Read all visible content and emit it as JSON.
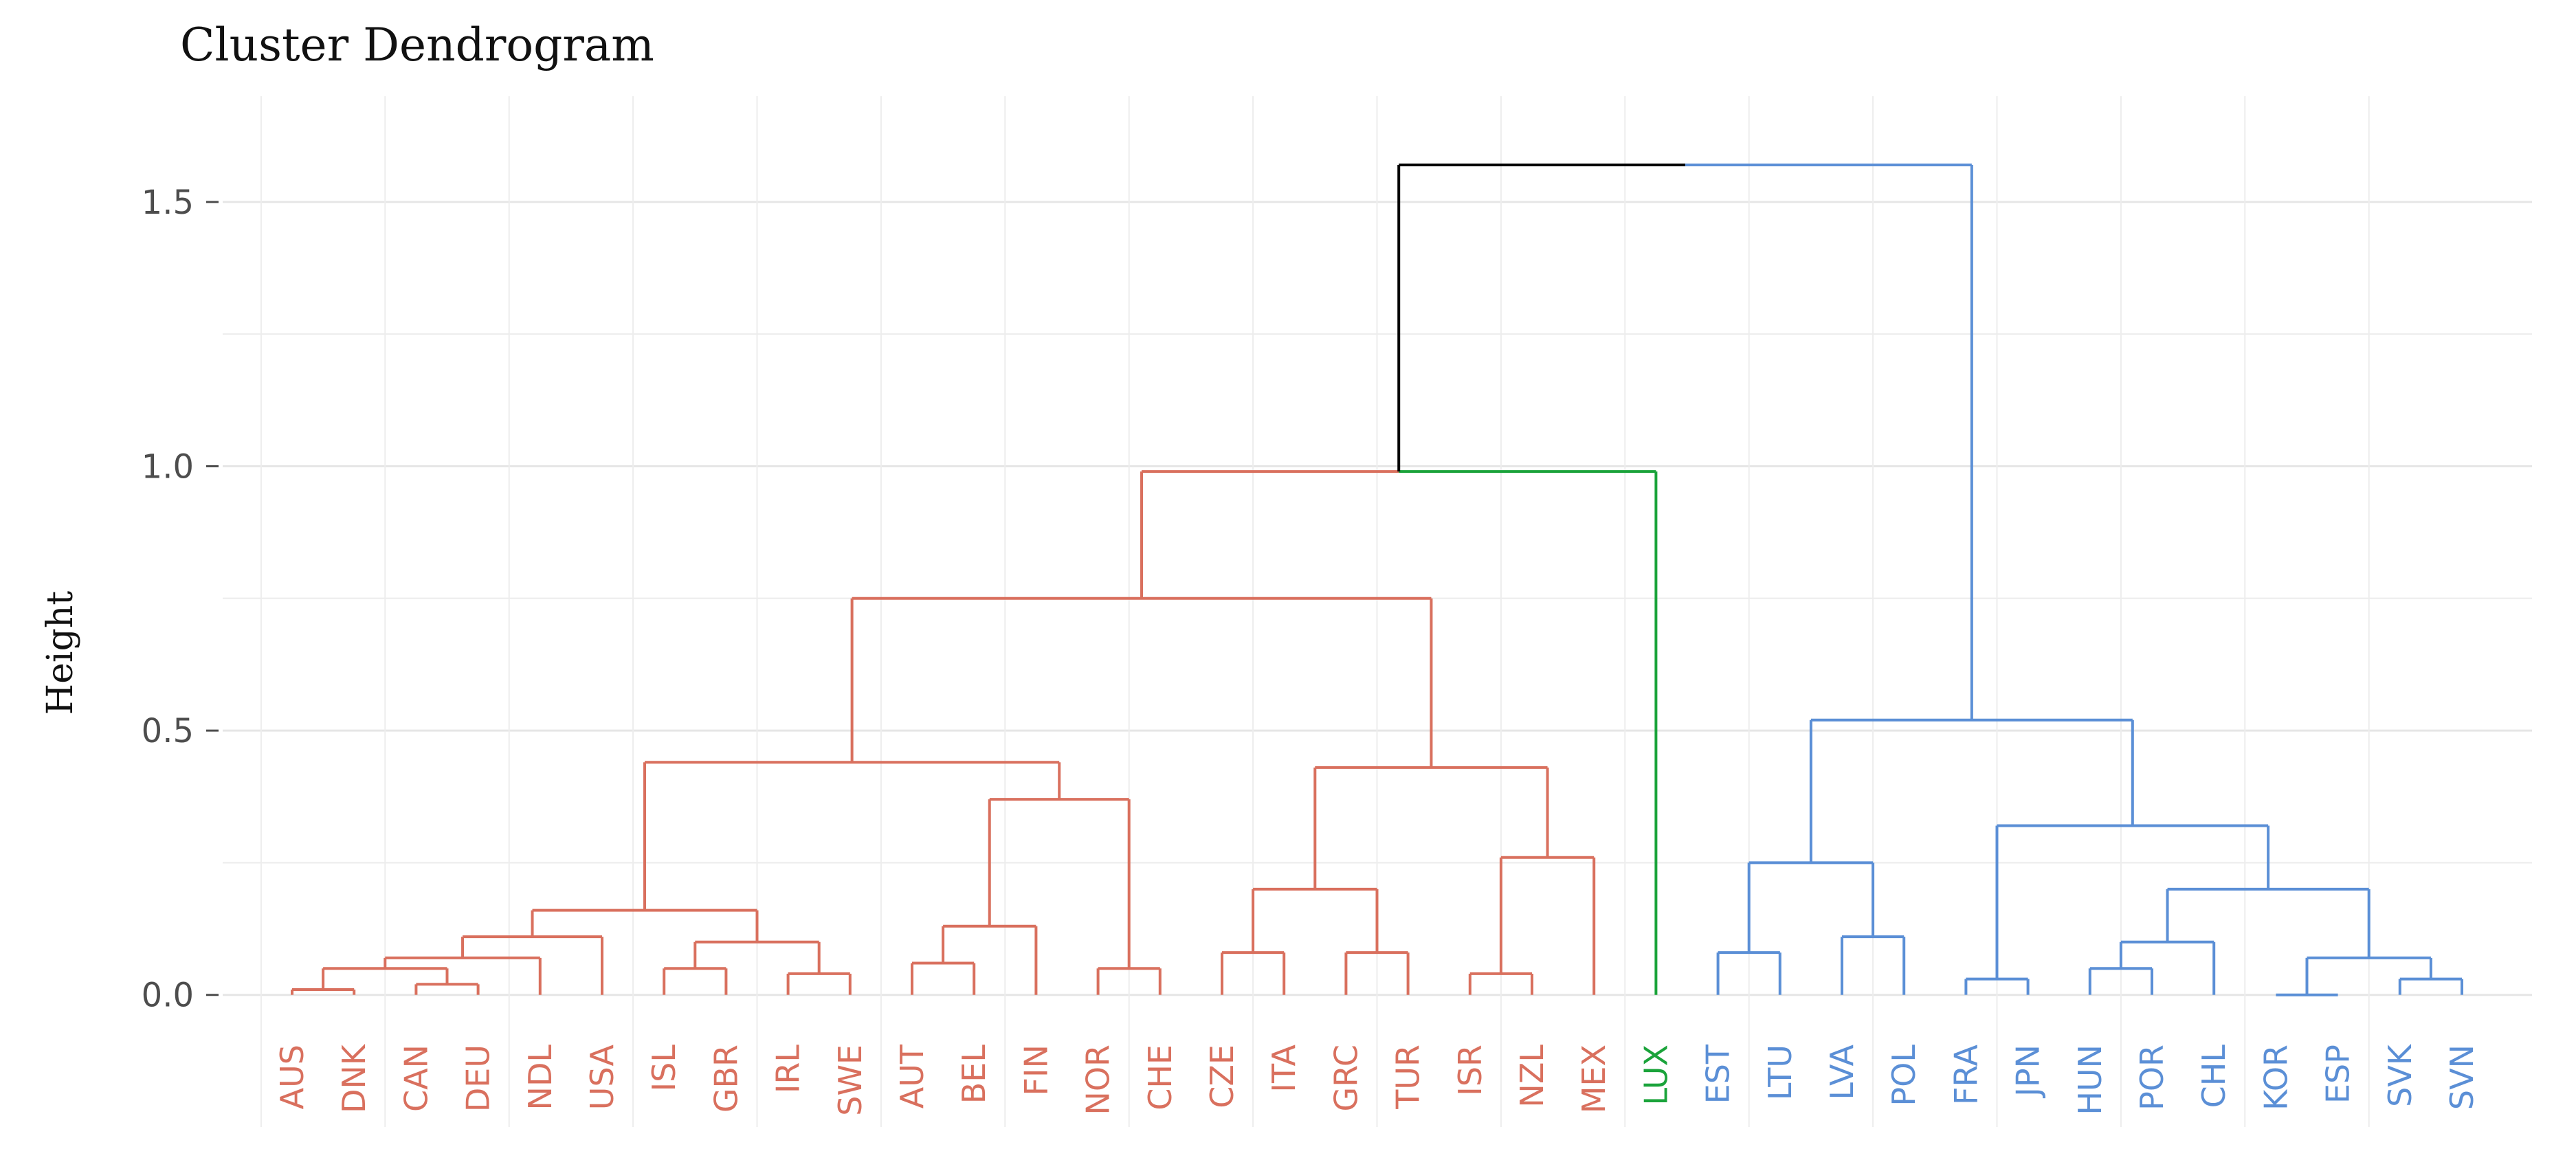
{
  "chart_data": {
    "type": "dendrogram",
    "title": "Cluster Dendrogram",
    "xlabel": "",
    "ylabel": "Height",
    "ylim": [
      -0.25,
      1.7
    ],
    "yticks": [
      0.0,
      0.5,
      1.0,
      1.5
    ],
    "ytick_labels": [
      "0.0",
      "0.5",
      "1.0",
      "1.5"
    ],
    "grid": true,
    "leaves": [
      "AUS",
      "DNK",
      "CAN",
      "DEU",
      "NDL",
      "USA",
      "ISL",
      "GBR",
      "IRL",
      "SWE",
      "AUT",
      "BEL",
      "FIN",
      "NOR",
      "CHE",
      "CZE",
      "ITA",
      "GRC",
      "TUR",
      "ISR",
      "NZL",
      "MEX",
      "LUX",
      "EST",
      "LTU",
      "LVA",
      "POL",
      "FRA",
      "JPN",
      "HUN",
      "POR",
      "CHL",
      "KOR",
      "ESP",
      "SVK",
      "SVN"
    ],
    "leaf_clusters": [
      1,
      1,
      1,
      1,
      1,
      1,
      1,
      1,
      1,
      1,
      1,
      1,
      1,
      1,
      1,
      1,
      1,
      1,
      1,
      1,
      1,
      1,
      2,
      3,
      3,
      3,
      3,
      3,
      3,
      3,
      3,
      3,
      3,
      3,
      3,
      3
    ],
    "cluster_colors": {
      "0": "#000000",
      "1": "#d9705e",
      "2": "#1aa33a",
      "3": "#5b8fd6"
    },
    "merges": [
      {
        "left": "AUS",
        "right": "DNK",
        "height": 0.01
      },
      {
        "left": "CAN",
        "right": "DEU",
        "height": 0.02
      },
      {
        "left": "AUS|DNK",
        "right": "CAN|DEU",
        "height": 0.05
      },
      {
        "left": "AUS|DNK|CAN|DEU",
        "right": "NDL",
        "height": 0.07
      },
      {
        "left": "AUS|DNK|CAN|DEU|NDL",
        "right": "USA",
        "height": 0.11
      },
      {
        "left": "ISL",
        "right": "GBR",
        "height": 0.05
      },
      {
        "left": "IRL",
        "right": "SWE",
        "height": 0.04
      },
      {
        "left": "ISL|GBR",
        "right": "IRL|SWE",
        "height": 0.1
      },
      {
        "left": "AUS..USA",
        "right": "ISL..SWE",
        "height": 0.16
      },
      {
        "left": "AUT",
        "right": "BEL",
        "height": 0.06
      },
      {
        "left": "AUT|BEL",
        "right": "FIN",
        "height": 0.13
      },
      {
        "left": "NOR",
        "right": "CHE",
        "height": 0.05
      },
      {
        "left": "AUT|BEL|FIN",
        "right": "NOR|CHE",
        "height": 0.37
      },
      {
        "left": "AUS..SWE",
        "right": "AUT..CHE",
        "height": 0.44
      },
      {
        "left": "CZE",
        "right": "ITA",
        "height": 0.08
      },
      {
        "left": "GRC",
        "right": "TUR",
        "height": 0.08
      },
      {
        "left": "CZE|ITA",
        "right": "GRC|TUR",
        "height": 0.2
      },
      {
        "left": "ISR",
        "right": "NZL",
        "height": 0.04
      },
      {
        "left": "ISR|NZL",
        "right": "MEX",
        "height": 0.26
      },
      {
        "left": "CZE..TUR",
        "right": "ISR..MEX",
        "height": 0.43
      },
      {
        "left": "AUS..CHE",
        "right": "CZE..MEX",
        "height": 0.75
      },
      {
        "left": "AUS..MEX",
        "right": "LUX",
        "height": 0.99
      },
      {
        "left": "EST",
        "right": "LTU",
        "height": 0.08
      },
      {
        "left": "LVA",
        "right": "POL",
        "height": 0.11
      },
      {
        "left": "EST|LTU",
        "right": "LVA|POL",
        "height": 0.25
      },
      {
        "left": "FRA",
        "right": "JPN",
        "height": 0.03
      },
      {
        "left": "HUN",
        "right": "POR",
        "height": 0.05
      },
      {
        "left": "HUN|POR",
        "right": "CHL",
        "height": 0.1
      },
      {
        "left": "KOR",
        "right": "ESP",
        "height": 0.0
      },
      {
        "left": "SVK",
        "right": "SVN",
        "height": 0.03
      },
      {
        "left": "KOR|ESP",
        "right": "SVK|SVN",
        "height": 0.07
      },
      {
        "left": "HUN|POR|CHL",
        "right": "KOR..SVN",
        "height": 0.2
      },
      {
        "left": "FRA|JPN",
        "right": "HUN..SVN",
        "height": 0.32
      },
      {
        "left": "EST..POL",
        "right": "FRA..SVN",
        "height": 0.52
      },
      {
        "left": "AUS..LUX",
        "right": "EST..SVN",
        "height": 1.57
      }
    ]
  }
}
